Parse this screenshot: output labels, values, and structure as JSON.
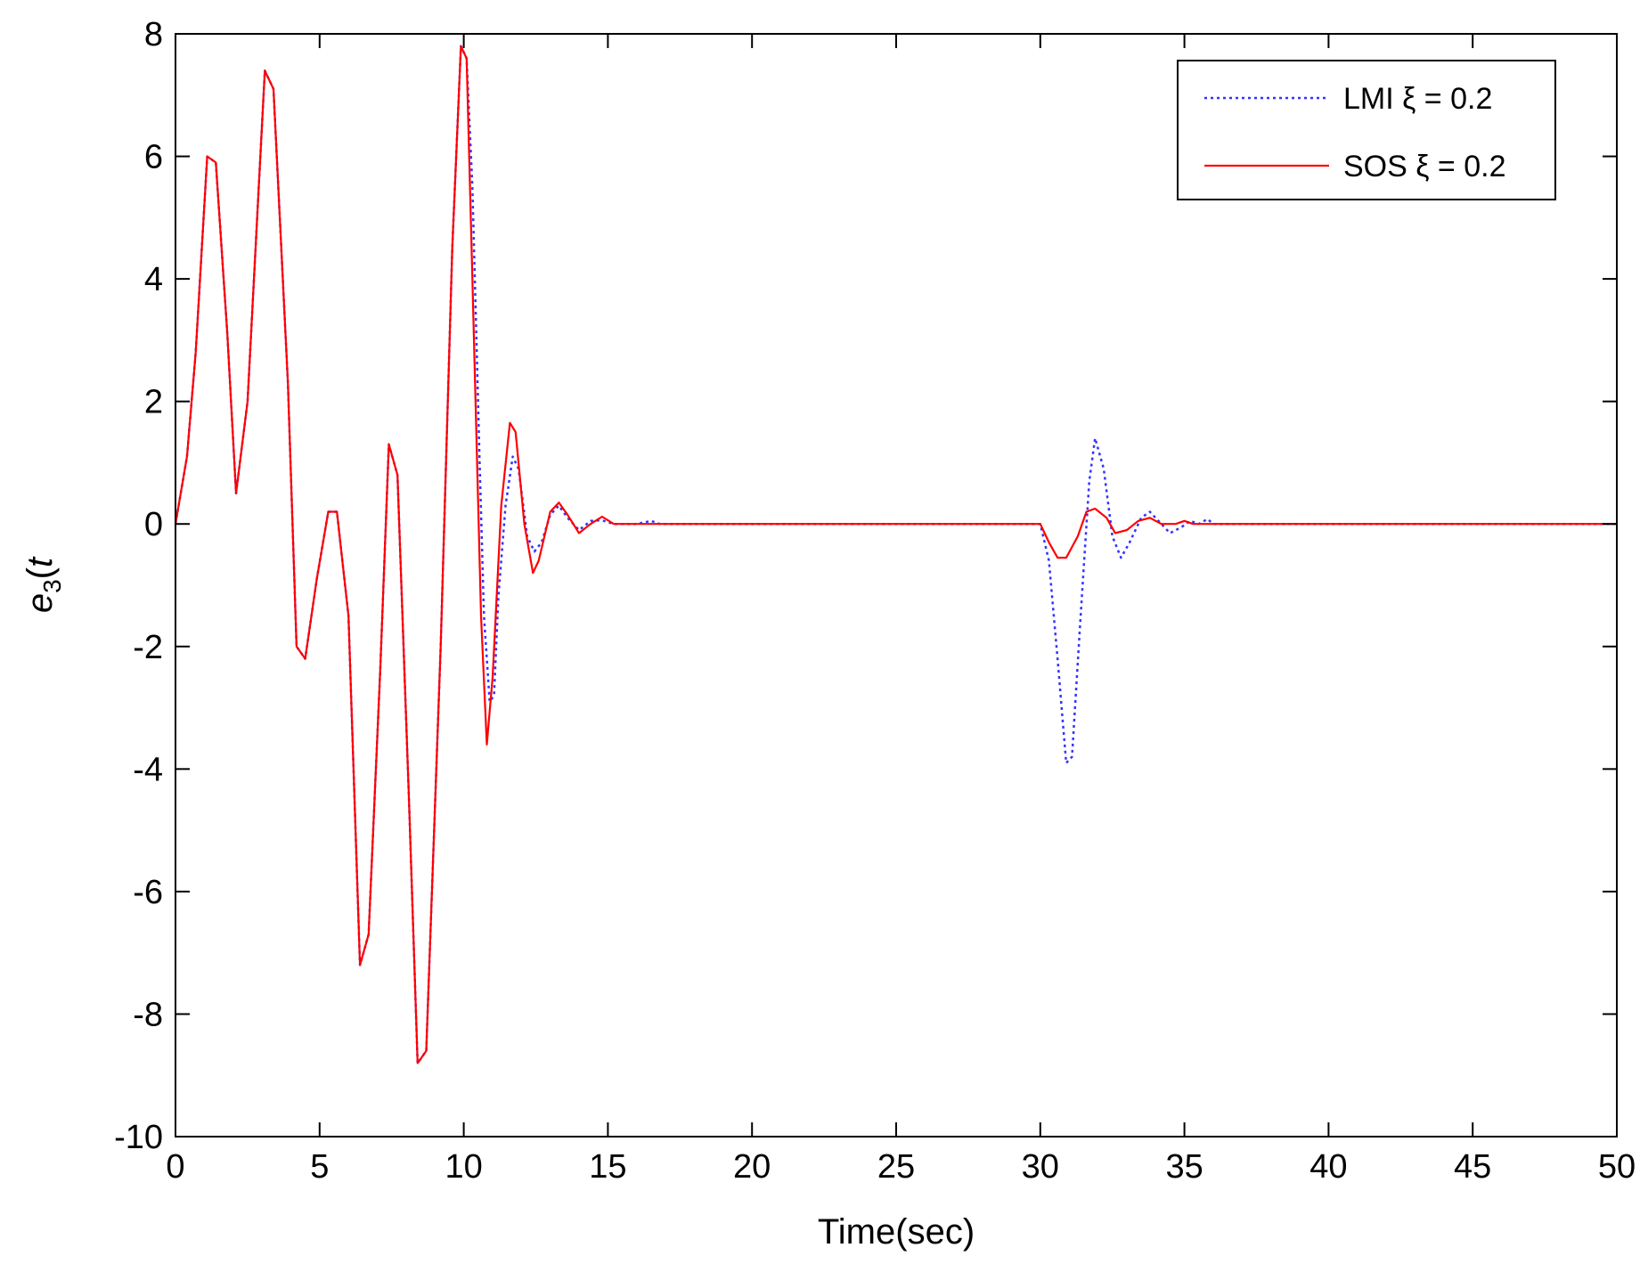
{
  "chart_data": {
    "type": "line",
    "xlabel": "Time(sec)",
    "ylabel_parts": {
      "base": "e",
      "sub": "3",
      "paren_open": "(",
      "var": "t",
      "paren_close": ")"
    },
    "xlim": [
      0,
      50
    ],
    "ylim": [
      -10,
      8
    ],
    "xticks": [
      0,
      5,
      10,
      15,
      20,
      25,
      30,
      35,
      40,
      45,
      50
    ],
    "yticks": [
      8,
      6,
      4,
      2,
      0,
      -2,
      -4,
      -6,
      -8,
      -10
    ],
    "x_tick_labels": [
      "0",
      "5",
      "10",
      "15",
      "20",
      "25",
      "30",
      "35",
      "40",
      "45",
      "50"
    ],
    "y_tick_labels": [
      "8",
      "6",
      "4",
      "2",
      "0",
      "-2",
      "-4",
      "-6",
      "-8",
      "-10"
    ],
    "grid": false,
    "box": true,
    "legend_position": "top-right",
    "series": [
      {
        "name": "LMI  ξ = 0.2",
        "color": "#3333ff",
        "style": "dotted",
        "points": [
          [
            0,
            0
          ],
          [
            0.4,
            1.1
          ],
          [
            0.7,
            2.8
          ],
          [
            1.1,
            6.0
          ],
          [
            1.4,
            5.9
          ],
          [
            1.8,
            3.1
          ],
          [
            2.1,
            0.5
          ],
          [
            2.5,
            2.0
          ],
          [
            3.1,
            7.4
          ],
          [
            3.4,
            7.1
          ],
          [
            3.9,
            2.3
          ],
          [
            4.2,
            -2.0
          ],
          [
            4.5,
            -2.2
          ],
          [
            4.9,
            -0.9
          ],
          [
            5.3,
            0.2
          ],
          [
            5.6,
            0.2
          ],
          [
            6.0,
            -1.5
          ],
          [
            6.4,
            -7.2
          ],
          [
            6.7,
            -6.7
          ],
          [
            7.1,
            -2.4
          ],
          [
            7.4,
            1.3
          ],
          [
            7.7,
            0.8
          ],
          [
            8.1,
            -4.5
          ],
          [
            8.4,
            -8.8
          ],
          [
            8.7,
            -8.6
          ],
          [
            9.2,
            -2.0
          ],
          [
            9.6,
            4.5
          ],
          [
            9.9,
            7.8
          ],
          [
            10.1,
            7.6
          ],
          [
            10.3,
            5.5
          ],
          [
            10.45,
            2.8
          ],
          [
            10.55,
            1.0
          ],
          [
            10.7,
            -1.5
          ],
          [
            10.9,
            -2.9
          ],
          [
            11.05,
            -2.8
          ],
          [
            11.2,
            -1.2
          ],
          [
            11.45,
            0.3
          ],
          [
            11.7,
            1.1
          ],
          [
            11.9,
            0.9
          ],
          [
            12.2,
            -0.2
          ],
          [
            12.45,
            -0.45
          ],
          [
            12.7,
            -0.3
          ],
          [
            13.0,
            0.15
          ],
          [
            13.3,
            0.3
          ],
          [
            13.6,
            0.1
          ],
          [
            14.0,
            -0.1
          ],
          [
            14.4,
            0.05
          ],
          [
            14.8,
            0.06
          ],
          [
            15.2,
            0.0
          ],
          [
            16.0,
            0.0
          ],
          [
            16.5,
            0.05
          ],
          [
            16.8,
            0.0
          ],
          [
            30.0,
            0.0
          ],
          [
            30.3,
            -0.6
          ],
          [
            30.6,
            -2.2
          ],
          [
            30.9,
            -3.9
          ],
          [
            31.1,
            -3.8
          ],
          [
            31.4,
            -1.5
          ],
          [
            31.7,
            0.7
          ],
          [
            31.9,
            1.4
          ],
          [
            32.2,
            0.9
          ],
          [
            32.5,
            -0.2
          ],
          [
            32.8,
            -0.55
          ],
          [
            33.1,
            -0.3
          ],
          [
            33.5,
            0.1
          ],
          [
            33.8,
            0.2
          ],
          [
            34.2,
            0.0
          ],
          [
            34.5,
            -0.15
          ],
          [
            34.9,
            -0.05
          ],
          [
            35.2,
            0.05
          ],
          [
            35.5,
            0.0
          ],
          [
            35.8,
            0.08
          ],
          [
            36.0,
            0.0
          ],
          [
            50,
            0.0
          ]
        ]
      },
      {
        "name": "SOS  ξ = 0.2",
        "color": "#ff0000",
        "style": "solid",
        "points": [
          [
            0,
            0
          ],
          [
            0.4,
            1.1
          ],
          [
            0.7,
            2.8
          ],
          [
            1.1,
            6.0
          ],
          [
            1.4,
            5.9
          ],
          [
            1.8,
            3.1
          ],
          [
            2.1,
            0.5
          ],
          [
            2.5,
            2.0
          ],
          [
            3.1,
            7.4
          ],
          [
            3.4,
            7.1
          ],
          [
            3.9,
            2.3
          ],
          [
            4.2,
            -2.0
          ],
          [
            4.5,
            -2.2
          ],
          [
            4.9,
            -0.9
          ],
          [
            5.3,
            0.2
          ],
          [
            5.6,
            0.2
          ],
          [
            6.0,
            -1.5
          ],
          [
            6.4,
            -7.2
          ],
          [
            6.7,
            -6.7
          ],
          [
            7.1,
            -2.4
          ],
          [
            7.4,
            1.3
          ],
          [
            7.7,
            0.8
          ],
          [
            8.1,
            -4.5
          ],
          [
            8.4,
            -8.8
          ],
          [
            8.7,
            -8.6
          ],
          [
            9.2,
            -2.0
          ],
          [
            9.6,
            4.5
          ],
          [
            9.9,
            7.8
          ],
          [
            10.1,
            7.6
          ],
          [
            10.3,
            4.0
          ],
          [
            10.6,
            -1.5
          ],
          [
            10.8,
            -3.6
          ],
          [
            11.0,
            -2.5
          ],
          [
            11.3,
            0.3
          ],
          [
            11.6,
            1.65
          ],
          [
            11.8,
            1.5
          ],
          [
            12.1,
            0.0
          ],
          [
            12.4,
            -0.8
          ],
          [
            12.6,
            -0.6
          ],
          [
            13.0,
            0.2
          ],
          [
            13.3,
            0.35
          ],
          [
            13.6,
            0.15
          ],
          [
            14.0,
            -0.15
          ],
          [
            14.4,
            0.0
          ],
          [
            14.8,
            0.12
          ],
          [
            15.2,
            0.0
          ],
          [
            30.0,
            0.0
          ],
          [
            30.3,
            -0.3
          ],
          [
            30.6,
            -0.55
          ],
          [
            30.9,
            -0.55
          ],
          [
            31.3,
            -0.2
          ],
          [
            31.6,
            0.2
          ],
          [
            31.9,
            0.25
          ],
          [
            32.3,
            0.1
          ],
          [
            32.6,
            -0.15
          ],
          [
            33.0,
            -0.1
          ],
          [
            33.4,
            0.05
          ],
          [
            33.8,
            0.1
          ],
          [
            34.2,
            0.0
          ],
          [
            34.7,
            0.0
          ],
          [
            35.0,
            0.05
          ],
          [
            35.3,
            0.0
          ],
          [
            50,
            0.0
          ]
        ]
      }
    ]
  }
}
